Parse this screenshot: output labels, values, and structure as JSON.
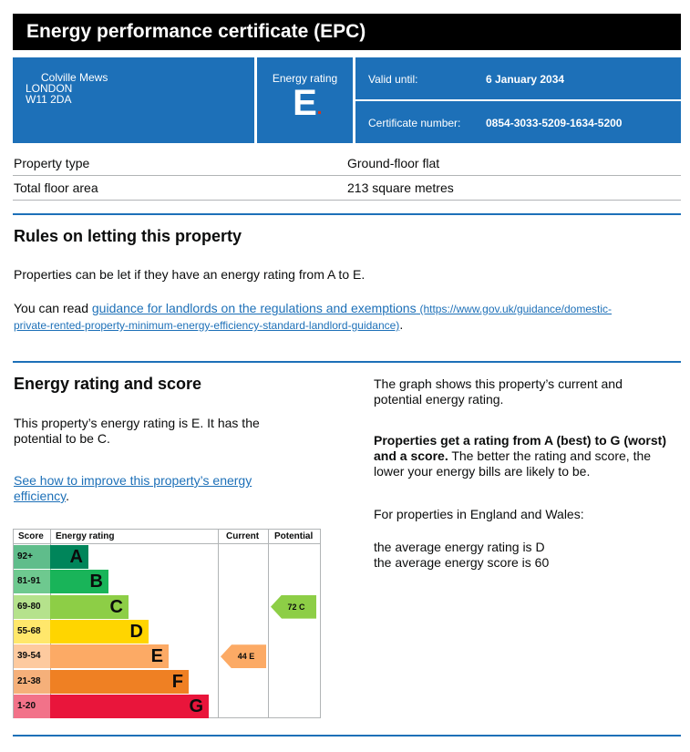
{
  "title": "Energy performance certificate (EPC)",
  "address": {
    "line1": "Colville Mews",
    "line2": "LONDON",
    "line3": "W11 2DA"
  },
  "energy_rating": {
    "label": "Energy rating",
    "value": "E"
  },
  "valid_until": {
    "label": "Valid until:",
    "value": "6 January 2034"
  },
  "certificate_number": {
    "label": "Certificate number:",
    "value": "0854-3033-5209-1634-5200"
  },
  "property": [
    {
      "label": "Property type",
      "value": "Ground-floor flat"
    },
    {
      "label": "Total floor area",
      "value": "213 square metres"
    }
  ],
  "letting": {
    "heading": "Rules on letting this property",
    "para1": "Properties can be let if they have an energy rating from A to E.",
    "para2_prefix": "You can read ",
    "link_text": "guidance for landlords on the regulations and exemptions",
    "link_url_a": "(https://www.gov.uk/guidance/domestic-",
    "link_url_b": "private-rented-property-minimum-energy-efficiency-standard-landlord-guidance)",
    "para2_suffix": "."
  },
  "score_section": {
    "heading": "Energy rating and score",
    "para1a": "This property’s energy rating is E. It has the",
    "para1b": "potential to be C.",
    "improve_link_a": "See how to improve this property’s energy",
    "improve_link_b": "efficiency",
    "improve_suffix": ".",
    "right_p1a": "The graph shows this property’s current and",
    "right_p1b": "potential energy rating.",
    "right_p2_bold_a": "Properties get a rating from A (best) to G (worst)",
    "right_p2_bold_b": "and a score.",
    "right_p2_rest_a": " The better the rating and score, the",
    "right_p2_rest_b": "lower your energy bills are likely to be.",
    "right_p3": "For properties in England and Wales:",
    "right_p4a": "the average energy rating is D",
    "right_p4b": "the average energy score is 60"
  },
  "chart_data": {
    "type": "bar",
    "headers": {
      "score": "Score",
      "rating": "Energy rating",
      "current": "Current",
      "potential": "Potential"
    },
    "bands": [
      {
        "score": "92+",
        "letter": "A",
        "color": "#00855a",
        "score_bg": "#5fbd8b",
        "text": "#0b0c0c"
      },
      {
        "score": "81-91",
        "letter": "B",
        "color": "#19b459",
        "score_bg": "#6ec98f",
        "text": "#0b0c0c"
      },
      {
        "score": "69-80",
        "letter": "C",
        "color": "#8dce46",
        "score_bg": "#b5e28c",
        "text": "#0b0c0c"
      },
      {
        "score": "55-68",
        "letter": "D",
        "color": "#ffd500",
        "score_bg": "#ffe76b",
        "text": "#0b0c0c"
      },
      {
        "score": "39-54",
        "letter": "E",
        "color": "#fcaa65",
        "score_bg": "#fdca9f",
        "text": "#0b0c0c"
      },
      {
        "score": "21-38",
        "letter": "F",
        "color": "#ef8023",
        "score_bg": "#f5b07a",
        "text": "#0b0c0c"
      },
      {
        "score": "1-20",
        "letter": "G",
        "color": "#e9153b",
        "score_bg": "#f27289",
        "text": "#0b0c0c"
      }
    ],
    "current": {
      "score": 44,
      "letter": "E",
      "label": "44 E",
      "color": "#fcaa65"
    },
    "potential": {
      "score": 72,
      "letter": "C",
      "label": "72 C",
      "color": "#8dce46"
    }
  }
}
